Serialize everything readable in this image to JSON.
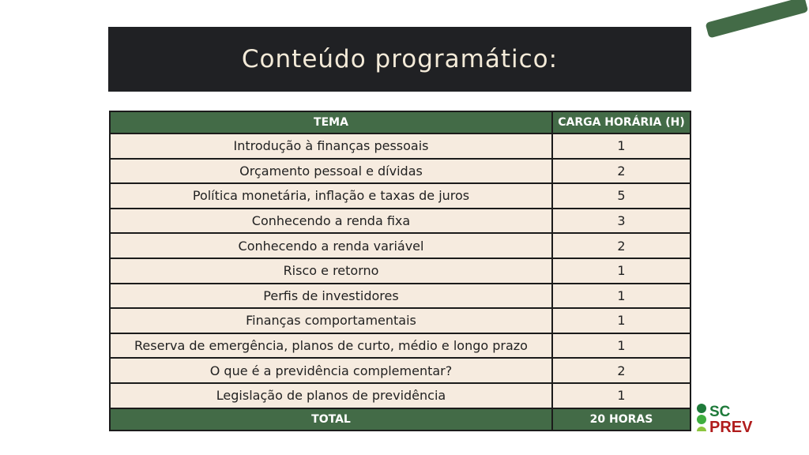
{
  "title": "Conteúdo programático:",
  "table": {
    "headers": [
      "TEMA",
      "CARGA HORÁRIA (H)"
    ],
    "rows": [
      [
        "Introdução à finanças pessoais",
        "1"
      ],
      [
        "Orçamento pessoal e dívidas",
        "2"
      ],
      [
        "Política monetária, inflação e taxas de juros",
        "5"
      ],
      [
        "Conhecendo a renda fixa",
        "3"
      ],
      [
        "Conhecendo a renda variável",
        "2"
      ],
      [
        "Risco e retorno",
        "1"
      ],
      [
        "Perfis de investidores",
        "1"
      ],
      [
        "Finanças comportamentais",
        "1"
      ],
      [
        "Reserva de emergência, planos de curto, médio e longo prazo",
        "1"
      ],
      [
        "O que é a previdência complementar?",
        "2"
      ],
      [
        "Legislação de planos de previdência",
        "1"
      ]
    ],
    "total": [
      "TOTAL",
      "20 HORAS"
    ]
  },
  "logo": {
    "line1": "SC",
    "line2": "PREV"
  },
  "colors": {
    "green": "#436b47",
    "dark": "#202124",
    "cream": "#f6ebdf",
    "logo_red": "#b01c1c",
    "logo_green": "#1e7a3a"
  }
}
